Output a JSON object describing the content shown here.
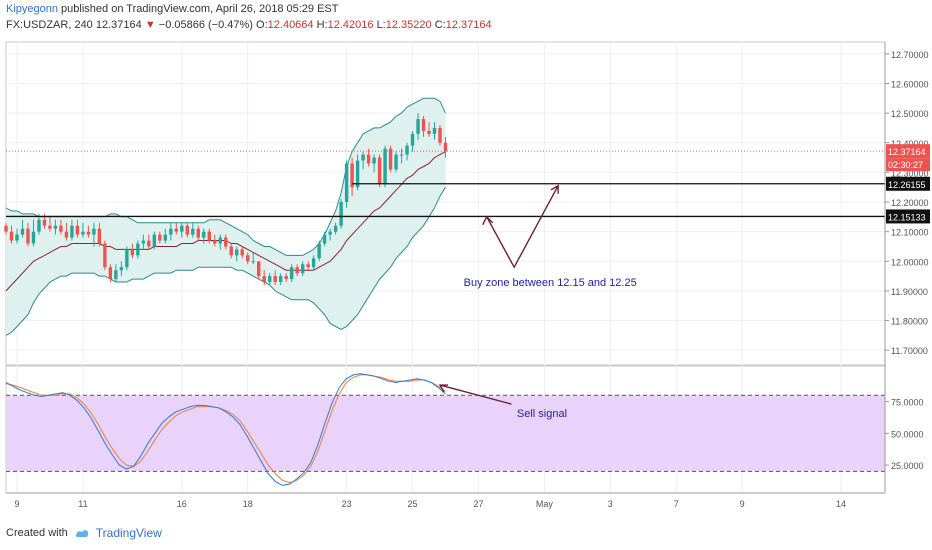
{
  "header": {
    "author": "Kipyegonn",
    "published": " published on TradingView.com, April 26, 2018 05:29 EST",
    "symbol": "FX:USDZAR, 240",
    "last": "12.37164",
    "arrow": "▼",
    "change": "−0.05866 (−0.47%)",
    "o_label": "O:",
    "o_val": "12.40664",
    "h_label": "H:",
    "h_val": "12.42016",
    "l_label": "L:",
    "l_val": "12.35220",
    "c_label": "C:",
    "c_val": "12.37164"
  },
  "footer": {
    "created": "Created with",
    "brand": "TradingView"
  },
  "colors": {
    "up": "#26a69a",
    "down": "#ef5350",
    "basis": "#8e2430",
    "band": "#2a8c8a",
    "band_fill": "#dff1ef",
    "stoch_fill": "#e9d3fb",
    "k": "#2f7bd6",
    "d": "#ef7e3a",
    "arrow": "#6b1f3a",
    "annot_text": "#2222aa"
  },
  "chart_data": {
    "type": "candlestick",
    "symbol": "FX:USDZAR",
    "interval": "240",
    "price_ylim": [
      11.65,
      12.74
    ],
    "price_ticks": [
      12.7,
      12.6,
      12.5,
      12.4,
      12.3,
      12.2,
      12.1,
      12.0,
      11.9,
      11.8,
      11.7
    ],
    "price_tick_labels": [
      "12.70000",
      "12.60000",
      "12.50000",
      "12.40000",
      "12.30000",
      "12.20000",
      "12.10000",
      "12.00000",
      "11.90000",
      "11.80000",
      "11.70000"
    ],
    "x_ticks": [
      {
        "label": "9",
        "idx": 2
      },
      {
        "label": "11",
        "idx": 14
      },
      {
        "label": "16",
        "idx": 32
      },
      {
        "label": "18",
        "idx": 44
      },
      {
        "label": "23",
        "idx": 62
      },
      {
        "label": "25",
        "idx": 74
      },
      {
        "label": "27",
        "idx": 86
      },
      {
        "label": "May",
        "idx": 98
      },
      {
        "label": "3",
        "idx": 110
      },
      {
        "label": "7",
        "idx": 122
      },
      {
        "label": "9",
        "idx": 134
      },
      {
        "label": "14",
        "idx": 152
      }
    ],
    "x_range": [
      0,
      160
    ],
    "candles_open": [
      12.12,
      12.1,
      12.07,
      12.09,
      12.11,
      12.06,
      12.1,
      12.14,
      12.12,
      12.11,
      12.12,
      12.1,
      12.08,
      12.12,
      12.09,
      12.1,
      12.09,
      12.11,
      12.06,
      11.98,
      11.94,
      11.97,
      11.98,
      12.04,
      12.02,
      12.06,
      12.07,
      12.05,
      12.09,
      12.07,
      12.09,
      12.11,
      12.1,
      12.12,
      12.09,
      12.11,
      12.08,
      12.1,
      12.07,
      12.06,
      12.08,
      12.05,
      12.02,
      12.04,
      12.02,
      12.0,
      12.0,
      11.95,
      11.93,
      11.95,
      11.93,
      11.95,
      11.94,
      11.98,
      11.96,
      11.99,
      11.98,
      12.01,
      12.06,
      12.09,
      12.1,
      12.12,
      12.2,
      12.33,
      12.25,
      12.34,
      12.36,
      12.33,
      12.35,
      12.26,
      12.38,
      12.31,
      12.36,
      12.36,
      12.39,
      12.43,
      12.48,
      12.44,
      12.43,
      12.45,
      12.4
    ],
    "candles_high": [
      12.13,
      12.12,
      12.11,
      12.14,
      12.13,
      12.14,
      12.16,
      12.16,
      12.15,
      12.14,
      12.14,
      12.13,
      12.14,
      12.14,
      12.13,
      12.12,
      12.13,
      12.13,
      12.07,
      11.99,
      11.99,
      12.0,
      12.05,
      12.06,
      12.07,
      12.09,
      12.09,
      12.1,
      12.1,
      12.11,
      12.13,
      12.13,
      12.13,
      12.13,
      12.13,
      12.12,
      12.11,
      12.11,
      12.09,
      12.09,
      12.09,
      12.06,
      12.05,
      12.05,
      12.03,
      12.03,
      12.0,
      11.97,
      11.96,
      11.97,
      11.96,
      11.96,
      11.99,
      11.99,
      12.0,
      12.0,
      12.02,
      12.07,
      12.1,
      12.11,
      12.13,
      12.21,
      12.34,
      12.35,
      12.36,
      12.37,
      12.38,
      12.36,
      12.36,
      12.39,
      12.39,
      12.37,
      12.38,
      12.4,
      12.44,
      12.5,
      12.49,
      12.47,
      12.47,
      12.46,
      12.42
    ],
    "candles_low": [
      12.09,
      12.06,
      12.06,
      12.08,
      12.05,
      12.05,
      12.09,
      12.11,
      12.1,
      12.09,
      12.09,
      12.07,
      12.07,
      12.08,
      12.08,
      12.08,
      12.05,
      12.05,
      11.97,
      11.93,
      11.93,
      11.95,
      11.97,
      12.01,
      12.01,
      12.04,
      12.04,
      12.04,
      12.06,
      12.06,
      12.07,
      12.09,
      12.08,
      12.08,
      12.08,
      12.07,
      12.06,
      12.06,
      12.05,
      12.04,
      12.04,
      12.01,
      12.0,
      12.01,
      11.99,
      11.99,
      11.94,
      11.92,
      11.92,
      11.92,
      11.92,
      11.93,
      11.93,
      11.95,
      11.95,
      11.97,
      11.97,
      12.0,
      12.05,
      12.07,
      12.09,
      12.11,
      12.18,
      12.22,
      12.24,
      12.31,
      12.32,
      12.3,
      12.25,
      12.25,
      12.3,
      12.3,
      12.33,
      12.34,
      12.37,
      12.41,
      12.42,
      12.42,
      12.41,
      12.39,
      12.35
    ],
    "candles_close": [
      12.1,
      12.07,
      12.09,
      12.11,
      12.06,
      12.1,
      12.14,
      12.12,
      12.11,
      12.12,
      12.1,
      12.08,
      12.12,
      12.09,
      12.1,
      12.09,
      12.11,
      12.06,
      11.98,
      11.94,
      11.97,
      11.98,
      12.04,
      12.02,
      12.06,
      12.07,
      12.05,
      12.09,
      12.07,
      12.09,
      12.11,
      12.1,
      12.12,
      12.09,
      12.11,
      12.08,
      12.1,
      12.07,
      12.06,
      12.08,
      12.05,
      12.02,
      12.04,
      12.02,
      12.0,
      12.0,
      11.95,
      11.93,
      11.95,
      11.93,
      11.95,
      11.94,
      11.98,
      11.96,
      11.99,
      11.98,
      12.01,
      12.06,
      12.09,
      12.1,
      12.12,
      12.2,
      12.33,
      12.25,
      12.34,
      12.36,
      12.33,
      12.35,
      12.26,
      12.38,
      12.31,
      12.36,
      12.36,
      12.39,
      12.43,
      12.48,
      12.44,
      12.43,
      12.45,
      12.4,
      12.37164
    ],
    "bb_upper": [
      12.18,
      12.17,
      12.17,
      12.16,
      12.16,
      12.16,
      12.15,
      12.15,
      12.15,
      12.15,
      12.15,
      12.15,
      12.15,
      12.15,
      12.15,
      12.15,
      12.15,
      12.15,
      12.15,
      12.16,
      12.16,
      12.15,
      12.15,
      12.14,
      12.13,
      12.13,
      12.13,
      12.13,
      12.13,
      12.13,
      12.13,
      12.13,
      12.13,
      12.13,
      12.13,
      12.13,
      12.13,
      12.14,
      12.14,
      12.14,
      12.13,
      12.12,
      12.11,
      12.1,
      12.09,
      12.07,
      12.06,
      12.05,
      12.05,
      12.04,
      12.03,
      12.02,
      12.02,
      12.02,
      12.02,
      12.03,
      12.04,
      12.06,
      12.09,
      12.13,
      12.17,
      12.23,
      12.32,
      12.37,
      12.4,
      12.43,
      12.44,
      12.45,
      12.45,
      12.46,
      12.47,
      12.49,
      12.5,
      12.52,
      12.53,
      12.54,
      12.55,
      12.55,
      12.55,
      12.54,
      12.5
    ],
    "bb_basis": [
      11.9,
      11.92,
      11.94,
      11.96,
      11.98,
      12.0,
      12.01,
      12.02,
      12.03,
      12.04,
      12.05,
      12.05,
      12.06,
      12.06,
      12.06,
      12.06,
      12.06,
      12.06,
      12.05,
      12.05,
      12.04,
      12.04,
      12.04,
      12.04,
      12.04,
      12.04,
      12.04,
      12.05,
      12.05,
      12.05,
      12.05,
      12.05,
      12.06,
      12.06,
      12.06,
      12.07,
      12.07,
      12.07,
      12.07,
      12.07,
      12.07,
      12.06,
      12.06,
      12.05,
      12.04,
      12.03,
      12.02,
      12.01,
      12.0,
      11.99,
      11.98,
      11.97,
      11.97,
      11.97,
      11.97,
      11.97,
      11.97,
      11.98,
      11.99,
      12.0,
      12.02,
      12.04,
      12.07,
      12.09,
      12.11,
      12.13,
      12.15,
      12.17,
      12.18,
      12.2,
      12.22,
      12.24,
      12.26,
      12.28,
      12.29,
      12.31,
      12.32,
      12.33,
      12.35,
      12.36,
      12.37
    ],
    "bb_lower": [
      11.75,
      11.76,
      11.78,
      11.8,
      11.82,
      11.86,
      11.89,
      11.91,
      11.93,
      11.94,
      11.95,
      11.95,
      11.96,
      11.96,
      11.96,
      11.96,
      11.96,
      11.95,
      11.95,
      11.94,
      11.93,
      11.93,
      11.93,
      11.94,
      11.94,
      11.94,
      11.95,
      11.96,
      11.96,
      11.96,
      11.96,
      11.97,
      11.97,
      11.97,
      11.97,
      11.98,
      11.98,
      11.98,
      11.98,
      11.98,
      11.98,
      11.98,
      11.97,
      11.97,
      11.96,
      11.95,
      11.94,
      11.93,
      11.92,
      11.9,
      11.89,
      11.88,
      11.87,
      11.87,
      11.87,
      11.87,
      11.86,
      11.84,
      11.82,
      11.79,
      11.78,
      11.77,
      11.78,
      11.8,
      11.82,
      11.85,
      11.88,
      11.91,
      11.94,
      11.96,
      11.98,
      12.01,
      12.03,
      12.05,
      12.08,
      12.1,
      12.12,
      12.15,
      12.18,
      12.22,
      12.25
    ],
    "hlines": [
      {
        "value": 12.26155,
        "label": "12.26155",
        "from_idx": 63
      },
      {
        "value": 12.15133,
        "label": "12.15133",
        "from_idx": 0
      }
    ],
    "last_price": {
      "value": 12.37164,
      "label": "12.37164",
      "countdown": "02:30:27"
    },
    "annotation_buy": "Buy zone between 12.15 and 12.25",
    "stoch": {
      "ylim": [
        3,
        103
      ],
      "ticks": [
        75,
        50,
        25
      ],
      "tick_labels": [
        "75.0000",
        "50.0000",
        "25.0000"
      ],
      "band": [
        80,
        20
      ],
      "k": [
        90,
        87,
        84,
        82,
        80,
        79,
        80,
        81,
        82,
        80,
        76,
        70,
        62,
        52,
        42,
        33,
        25,
        22,
        24,
        32,
        42,
        50,
        58,
        63,
        67,
        69,
        71,
        72,
        72,
        71,
        70,
        67,
        63,
        57,
        48,
        38,
        28,
        18,
        12,
        9,
        10,
        14,
        19,
        27,
        41,
        58,
        74,
        86,
        93,
        96,
        97,
        96,
        95,
        93,
        91,
        90,
        91,
        92,
        93,
        92,
        90,
        86,
        81
      ],
      "d": [
        89,
        88,
        86,
        84,
        82,
        80,
        80,
        80,
        81,
        81,
        78,
        73,
        66,
        57,
        47,
        38,
        30,
        25,
        24,
        28,
        36,
        45,
        53,
        59,
        64,
        67,
        69,
        71,
        71,
        71,
        70,
        68,
        65,
        60,
        52,
        43,
        34,
        25,
        18,
        13,
        11,
        13,
        17,
        24,
        36,
        52,
        68,
        81,
        90,
        94,
        96,
        96,
        95,
        94,
        92,
        91,
        91,
        91,
        92,
        92,
        90,
        87,
        83
      ],
      "start_idx": 0,
      "end_idx": 80
    },
    "annotation_sell": "Sell signal"
  }
}
